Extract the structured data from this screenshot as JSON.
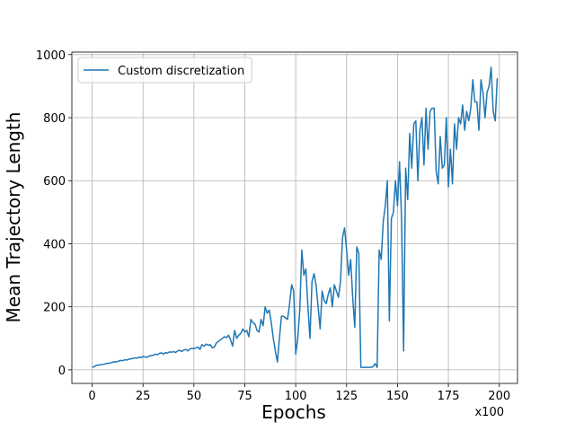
{
  "chart_data": {
    "type": "line",
    "xlabel": "Epochs",
    "ylabel": "Mean Trajectory Length",
    "x_offset_label": "x100",
    "xlim": [
      -9.95,
      208.95
    ],
    "ylim": [
      -43,
      1008
    ],
    "xticks": [
      0,
      25,
      50,
      75,
      100,
      125,
      150,
      175,
      200
    ],
    "yticks": [
      0,
      200,
      400,
      600,
      800,
      1000
    ],
    "grid": true,
    "legend": "upper left",
    "x": [
      0,
      1,
      2,
      3,
      4,
      5,
      6,
      7,
      8,
      9,
      10,
      11,
      12,
      13,
      14,
      15,
      16,
      17,
      18,
      19,
      20,
      21,
      22,
      23,
      24,
      25,
      26,
      27,
      28,
      29,
      30,
      31,
      32,
      33,
      34,
      35,
      36,
      37,
      38,
      39,
      40,
      41,
      42,
      43,
      44,
      45,
      46,
      47,
      48,
      49,
      50,
      51,
      52,
      53,
      54,
      55,
      56,
      57,
      58,
      59,
      60,
      61,
      62,
      63,
      64,
      65,
      66,
      67,
      68,
      69,
      70,
      71,
      72,
      73,
      74,
      75,
      76,
      77,
      78,
      79,
      80,
      81,
      82,
      83,
      84,
      85,
      86,
      87,
      88,
      89,
      90,
      91,
      92,
      93,
      94,
      95,
      96,
      97,
      98,
      99,
      100,
      101,
      102,
      103,
      104,
      105,
      106,
      107,
      108,
      109,
      110,
      111,
      112,
      113,
      114,
      115,
      116,
      117,
      118,
      119,
      120,
      121,
      122,
      123,
      124,
      125,
      126,
      127,
      128,
      129,
      130,
      131,
      132,
      133,
      134,
      135,
      136,
      137,
      138,
      139,
      140,
      141,
      142,
      143,
      144,
      145,
      146,
      147,
      148,
      149,
      150,
      151,
      152,
      153,
      154,
      155,
      156,
      157,
      158,
      159,
      160,
      161,
      162,
      163,
      164,
      165,
      166,
      167,
      168,
      169,
      170,
      171,
      172,
      173,
      174,
      175,
      176,
      177,
      178,
      179,
      180,
      181,
      182,
      183,
      184,
      185,
      186,
      187,
      188,
      189,
      190,
      191,
      192,
      193,
      194,
      195,
      196,
      197,
      198,
      199
    ],
    "series": [
      {
        "name": "Custom discretization",
        "color": "#1f77b4",
        "values": [
          8,
          10,
          14,
          15,
          16,
          17,
          18,
          20,
          21,
          22,
          24,
          26,
          25,
          28,
          30,
          29,
          32,
          31,
          34,
          35,
          36,
          38,
          37,
          40,
          39,
          42,
          41,
          40,
          44,
          45,
          46,
          50,
          48,
          52,
          54,
          50,
          55,
          53,
          57,
          56,
          58,
          55,
          60,
          62,
          58,
          63,
          65,
          60,
          66,
          68,
          67,
          70,
          72,
          65,
          80,
          75,
          82,
          78,
          80,
          70,
          72,
          85,
          90,
          95,
          100,
          105,
          102,
          110,
          95,
          75,
          125,
          100,
          110,
          115,
          130,
          120,
          125,
          105,
          160,
          150,
          145,
          125,
          120,
          160,
          140,
          200,
          180,
          190,
          150,
          100,
          60,
          25,
          100,
          170,
          170,
          165,
          160,
          210,
          270,
          250,
          50,
          100,
          190,
          380,
          300,
          320,
          200,
          100,
          280,
          305,
          270,
          200,
          130,
          250,
          220,
          210,
          240,
          260,
          200,
          270,
          250,
          230,
          280,
          420,
          450,
          380,
          300,
          350,
          230,
          135,
          390,
          370,
          8,
          8,
          8,
          8,
          8,
          8,
          10,
          20,
          8,
          380,
          350,
          470,
          520,
          600,
          155,
          480,
          500,
          600,
          520,
          660,
          480,
          60,
          640,
          540,
          750,
          640,
          780,
          790,
          600,
          760,
          800,
          650,
          830,
          700,
          820,
          830,
          830,
          630,
          590,
          740,
          640,
          650,
          800,
          580,
          700,
          590,
          780,
          700,
          800,
          780,
          840,
          760,
          820,
          790,
          830,
          920,
          850,
          850,
          760,
          920,
          880,
          800,
          880,
          900,
          960,
          820,
          790,
          925
        ]
      }
    ]
  }
}
